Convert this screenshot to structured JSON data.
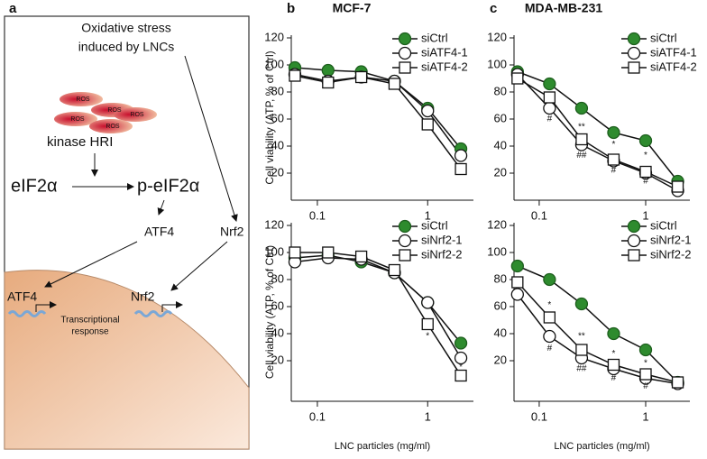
{
  "panel_labels": [
    "a",
    "b",
    "c"
  ],
  "diagram": {
    "stress": [
      "Oxidative stress",
      "induced by LNCs"
    ],
    "ros": [
      "ROS",
      "ROS",
      "ROS",
      "ROS",
      "ROS"
    ],
    "kinase": "kinase HRI",
    "eif2a": "eIF2α",
    "p_eif2a": "p-eIF2α",
    "atf4": "ATF4",
    "nrf2": "Nrf2",
    "nuclear_atf4": "ATF4",
    "nuclear_nrf2": "Nrf2",
    "response": [
      "Transcriptional",
      "response"
    ]
  },
  "chart_data": [
    {
      "type": "line",
      "title": "MCF-7",
      "y_label": "Cell viability (ATP, % of Ctrl)",
      "log_x": true,
      "x": [
        0.0625,
        0.125,
        0.25,
        0.5,
        1,
        2
      ],
      "xlim": [
        0.058,
        2.6
      ],
      "xticks": [
        0.1,
        1
      ],
      "ylim": [
        0,
        122
      ],
      "yticks": [
        20,
        40,
        60,
        80,
        100,
        120
      ],
      "legend": "upper right",
      "series": [
        {
          "name": "siCtrl",
          "color": "#2e8b2e",
          "marker": "circle",
          "values": [
            98,
            96,
            95,
            88,
            68,
            38
          ]
        },
        {
          "name": "siATF4-1",
          "color": "#ffffff",
          "marker": "circle",
          "values": [
            93,
            88,
            91,
            88,
            66,
            33
          ]
        },
        {
          "name": "siATF4-2",
          "color": "#ffffff",
          "marker": "square",
          "values": [
            92,
            87,
            91,
            86,
            56,
            23
          ]
        }
      ],
      "annotations": []
    },
    {
      "type": "line",
      "title": "MDA-MB-231",
      "log_x": true,
      "x": [
        0.0625,
        0.125,
        0.25,
        0.5,
        1,
        2
      ],
      "xlim": [
        0.058,
        2.6
      ],
      "xticks": [
        0.1,
        1
      ],
      "ylim": [
        0,
        122
      ],
      "yticks": [
        20,
        40,
        60,
        80,
        100,
        120
      ],
      "legend": "upper right",
      "series": [
        {
          "name": "siCtrl",
          "color": "#2e8b2e",
          "marker": "circle",
          "values": [
            95,
            86,
            68,
            50,
            44,
            14
          ]
        },
        {
          "name": "siATF4-1",
          "color": "#ffffff",
          "marker": "circle",
          "values": [
            93,
            68,
            41,
            29,
            20,
            7
          ]
        },
        {
          "name": "siATF4-2",
          "color": "#ffffff",
          "marker": "square",
          "values": [
            90,
            76,
            45,
            30,
            21,
            10
          ]
        }
      ],
      "annotations": [
        {
          "text": "#",
          "x": 0.125,
          "y": 60
        },
        {
          "text": "**",
          "x": 0.25,
          "y": 54
        },
        {
          "text": "##",
          "x": 0.25,
          "y": 33
        },
        {
          "text": "*",
          "x": 0.5,
          "y": 41
        },
        {
          "text": "#",
          "x": 0.5,
          "y": 22
        },
        {
          "text": "*",
          "x": 1,
          "y": 33
        },
        {
          "text": "#",
          "x": 1,
          "y": 14
        }
      ]
    },
    {
      "type": "line",
      "y_label": "Cell viability (ATP, % of Ctrl)",
      "x_label": "LNC particles (mg/ml)",
      "log_x": true,
      "x": [
        0.0625,
        0.125,
        0.25,
        0.5,
        1,
        2
      ],
      "xlim": [
        0.058,
        2.6
      ],
      "xticks": [
        0.1,
        1
      ],
      "ylim": [
        -10,
        122
      ],
      "yticks": [
        20,
        40,
        60,
        80,
        100,
        120
      ],
      "legend": "upper right",
      "series": [
        {
          "name": "siCtrl",
          "color": "#2e8b2e",
          "marker": "circle",
          "values": [
            96,
            98,
            93,
            85,
            63,
            33
          ]
        },
        {
          "name": "siNrf2-1",
          "color": "#ffffff",
          "marker": "circle",
          "values": [
            93,
            96,
            95,
            85,
            63,
            22
          ]
        },
        {
          "name": "siNrf2-2",
          "color": "#ffffff",
          "marker": "square",
          "values": [
            100,
            100,
            97,
            87,
            47,
            9
          ]
        }
      ],
      "annotations": [
        {
          "text": "*",
          "x": 1,
          "y": 38
        },
        {
          "text": "*",
          "x": 2,
          "y": 15
        }
      ]
    },
    {
      "type": "line",
      "x_label": "LNC particles (mg/ml)",
      "log_x": true,
      "x": [
        0.0625,
        0.125,
        0.25,
        0.5,
        1,
        2
      ],
      "xlim": [
        0.058,
        2.6
      ],
      "xticks": [
        0.1,
        1
      ],
      "ylim": [
        -10,
        122
      ],
      "yticks": [
        20,
        40,
        60,
        80,
        100,
        120
      ],
      "legend": "upper right",
      "series": [
        {
          "name": "siCtrl",
          "color": "#2e8b2e",
          "marker": "circle",
          "values": [
            90,
            80,
            62,
            40,
            28,
            4
          ]
        },
        {
          "name": "siNrf2-1",
          "color": "#ffffff",
          "marker": "circle",
          "values": [
            69,
            38,
            22,
            14,
            7,
            3
          ]
        },
        {
          "name": "siNrf2-2",
          "color": "#ffffff",
          "marker": "square",
          "values": [
            78,
            52,
            28,
            17,
            10,
            4
          ]
        }
      ],
      "annotations": [
        {
          "text": "*",
          "x": 0.125,
          "y": 61
        },
        {
          "text": "#",
          "x": 0.125,
          "y": 29
        },
        {
          "text": "**",
          "x": 0.25,
          "y": 38
        },
        {
          "text": "##",
          "x": 0.25,
          "y": 14
        },
        {
          "text": "*",
          "x": 0.5,
          "y": 25
        },
        {
          "text": "#",
          "x": 0.5,
          "y": 7
        },
        {
          "text": "*",
          "x": 1,
          "y": 18
        },
        {
          "text": "#",
          "x": 1,
          "y": 1
        }
      ]
    }
  ]
}
